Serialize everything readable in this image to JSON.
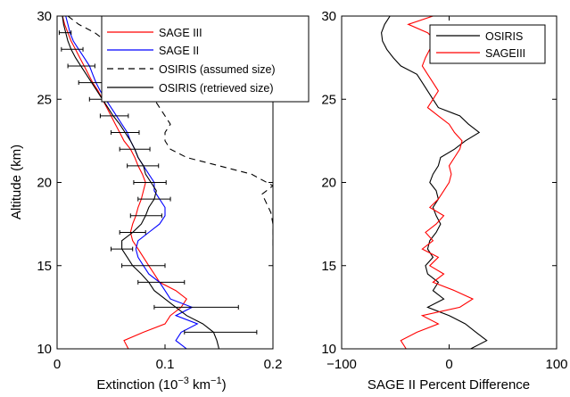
{
  "chart_data": [
    {
      "type": "line",
      "xlabel": "Extinction (10",
      "xlabel_sup1": "−3",
      "xlabel_mid": " km",
      "xlabel_sup2": "−1",
      "xlabel_end": ")",
      "ylabel": "Altitude (km)",
      "xlim": [
        0,
        0.2
      ],
      "ylim": [
        10,
        30
      ],
      "xticks": [
        0,
        0.1,
        0.2
      ],
      "xtick_labels": [
        "0",
        "0.1",
        "0.2"
      ],
      "yticks": [
        10,
        15,
        20,
        25,
        30
      ],
      "ytick_labels": [
        "10",
        "15",
        "20",
        "25",
        "30"
      ],
      "grid": false,
      "legend_position": "top-right",
      "series": [
        {
          "name": "SAGE III",
          "color": "#ff0000",
          "style": "solid",
          "points": [
            [
              0.066,
              10
            ],
            [
              0.062,
              10.5
            ],
            [
              0.08,
              11
            ],
            [
              0.1,
              11.5
            ],
            [
              0.105,
              12
            ],
            [
              0.115,
              12.5
            ],
            [
              0.12,
              13
            ],
            [
              0.11,
              13.5
            ],
            [
              0.095,
              14
            ],
            [
              0.09,
              14.5
            ],
            [
              0.085,
              15
            ],
            [
              0.08,
              15.5
            ],
            [
              0.075,
              16
            ],
            [
              0.07,
              16.5
            ],
            [
              0.068,
              17
            ],
            [
              0.07,
              17.5
            ],
            [
              0.073,
              18
            ],
            [
              0.075,
              18.5
            ],
            [
              0.078,
              19
            ],
            [
              0.08,
              19.5
            ],
            [
              0.082,
              20
            ],
            [
              0.079,
              20.5
            ],
            [
              0.075,
              21
            ],
            [
              0.072,
              21.5
            ],
            [
              0.068,
              22
            ],
            [
              0.062,
              22.5
            ],
            [
              0.058,
              23
            ],
            [
              0.054,
              23.5
            ],
            [
              0.05,
              24
            ],
            [
              0.046,
              24.5
            ],
            [
              0.042,
              25
            ],
            [
              0.038,
              25.5
            ],
            [
              0.033,
              26
            ],
            [
              0.029,
              26.5
            ],
            [
              0.025,
              27
            ],
            [
              0.021,
              27.5
            ],
            [
              0.017,
              28
            ],
            [
              0.013,
              28.5
            ],
            [
              0.01,
              29
            ],
            [
              0.007,
              29.5
            ],
            [
              0.005,
              30
            ]
          ]
        },
        {
          "name": "SAGE II",
          "color": "#0000ff",
          "style": "solid",
          "points": [
            [
              0.12,
              10
            ],
            [
              0.11,
              10.5
            ],
            [
              0.115,
              11
            ],
            [
              0.13,
              11.5
            ],
            [
              0.11,
              12
            ],
            [
              0.125,
              12.5
            ],
            [
              0.105,
              13
            ],
            [
              0.1,
              13.5
            ],
            [
              0.095,
              14
            ],
            [
              0.085,
              14.5
            ],
            [
              0.08,
              15
            ],
            [
              0.075,
              15.5
            ],
            [
              0.073,
              16
            ],
            [
              0.075,
              16.5
            ],
            [
              0.085,
              17
            ],
            [
              0.095,
              17.5
            ],
            [
              0.1,
              18
            ],
            [
              0.1,
              18.5
            ],
            [
              0.095,
              19
            ],
            [
              0.09,
              19.5
            ],
            [
              0.09,
              20
            ],
            [
              0.085,
              20.5
            ],
            [
              0.08,
              21
            ],
            [
              0.075,
              21.5
            ],
            [
              0.072,
              22
            ],
            [
              0.068,
              22.5
            ],
            [
              0.065,
              23
            ],
            [
              0.06,
              23.5
            ],
            [
              0.055,
              24
            ],
            [
              0.05,
              24.5
            ],
            [
              0.045,
              25
            ],
            [
              0.04,
              25.5
            ],
            [
              0.036,
              26
            ],
            [
              0.033,
              26.5
            ],
            [
              0.03,
              27
            ],
            [
              0.025,
              27.5
            ],
            [
              0.02,
              28
            ],
            [
              0.015,
              28.5
            ],
            [
              0.012,
              29
            ],
            [
              0.01,
              29.5
            ],
            [
              0.008,
              30
            ]
          ]
        },
        {
          "name": "OSIRIS (assumed size)",
          "color": "#000000",
          "style": "dashed",
          "points": [
            [
              0.2,
              16.2
            ],
            [
              0.2,
              17.5
            ],
            [
              0.198,
              18.2
            ],
            [
              0.19,
              19.3
            ],
            [
              0.2,
              19.8
            ],
            [
              0.18,
              20.5
            ],
            [
              0.15,
              21
            ],
            [
              0.12,
              21.5
            ],
            [
              0.105,
              22
            ],
            [
              0.1,
              22.5
            ],
            [
              0.1,
              23
            ],
            [
              0.105,
              23.5
            ],
            [
              0.1,
              24
            ],
            [
              0.095,
              24.5
            ],
            [
              0.09,
              25
            ],
            [
              0.085,
              25.5
            ],
            [
              0.08,
              26
            ],
            [
              0.078,
              26.5
            ],
            [
              0.075,
              27
            ],
            [
              0.06,
              27.5
            ],
            [
              0.05,
              28
            ],
            [
              0.045,
              28.5
            ],
            [
              0.035,
              29
            ],
            [
              0.02,
              29.5
            ],
            [
              0.01,
              30
            ]
          ]
        },
        {
          "name": "OSIRIS (retrieved size)",
          "color": "#000000",
          "style": "solid",
          "points": [
            [
              0.15,
              10
            ],
            [
              0.148,
              10.5
            ],
            [
              0.145,
              11
            ],
            [
              0.135,
              11.5
            ],
            [
              0.12,
              12
            ],
            [
              0.11,
              12.5
            ],
            [
              0.1,
              13
            ],
            [
              0.09,
              13.5
            ],
            [
              0.085,
              14
            ],
            [
              0.078,
              14.5
            ],
            [
              0.07,
              15
            ],
            [
              0.065,
              15.5
            ],
            [
              0.06,
              16
            ],
            [
              0.06,
              16.5
            ],
            [
              0.07,
              17
            ],
            [
              0.078,
              17.5
            ],
            [
              0.082,
              18
            ],
            [
              0.085,
              18.5
            ],
            [
              0.09,
              19
            ],
            [
              0.092,
              19.5
            ],
            [
              0.087,
              20
            ],
            [
              0.082,
              20.5
            ],
            [
              0.08,
              21
            ],
            [
              0.075,
              21.5
            ],
            [
              0.072,
              22
            ],
            [
              0.068,
              22.5
            ],
            [
              0.063,
              23
            ],
            [
              0.058,
              23.5
            ],
            [
              0.052,
              24
            ],
            [
              0.047,
              24.5
            ],
            [
              0.042,
              25
            ],
            [
              0.037,
              25.5
            ],
            [
              0.032,
              26
            ],
            [
              0.027,
              26.5
            ],
            [
              0.022,
              27
            ],
            [
              0.017,
              27.5
            ],
            [
              0.013,
              28
            ],
            [
              0.01,
              28.5
            ],
            [
              0.008,
              29
            ],
            [
              0.006,
              29.5
            ],
            [
              0.005,
              30
            ]
          ]
        }
      ],
      "error_bars": [
        {
          "y": 11,
          "x": 0.15,
          "lo": 0.118,
          "hi": 0.185
        },
        {
          "y": 12.5,
          "x": 0.11,
          "lo": 0.09,
          "hi": 0.168
        },
        {
          "y": 14,
          "x": 0.085,
          "lo": 0.075,
          "hi": 0.118
        },
        {
          "y": 15,
          "x": 0.07,
          "lo": 0.06,
          "hi": 0.1
        },
        {
          "y": 16,
          "x": 0.06,
          "lo": 0.05,
          "hi": 0.07
        },
        {
          "y": 17,
          "x": 0.07,
          "lo": 0.058,
          "hi": 0.082
        },
        {
          "y": 18,
          "x": 0.082,
          "lo": 0.068,
          "hi": 0.097
        },
        {
          "y": 19,
          "x": 0.09,
          "lo": 0.075,
          "hi": 0.105
        },
        {
          "y": 20,
          "x": 0.087,
          "lo": 0.071,
          "hi": 0.101
        },
        {
          "y": 21,
          "x": 0.08,
          "lo": 0.065,
          "hi": 0.094
        },
        {
          "y": 22,
          "x": 0.072,
          "lo": 0.058,
          "hi": 0.086
        },
        {
          "y": 23,
          "x": 0.063,
          "lo": 0.05,
          "hi": 0.076
        },
        {
          "y": 24,
          "x": 0.052,
          "lo": 0.04,
          "hi": 0.066
        },
        {
          "y": 25,
          "x": 0.042,
          "lo": 0.03,
          "hi": 0.055
        },
        {
          "y": 26,
          "x": 0.032,
          "lo": 0.02,
          "hi": 0.045
        },
        {
          "y": 27,
          "x": 0.022,
          "lo": 0.01,
          "hi": 0.035
        },
        {
          "y": 28,
          "x": 0.013,
          "lo": 0.004,
          "hi": 0.024
        },
        {
          "y": 29,
          "x": 0.008,
          "lo": 0.002,
          "hi": 0.013
        }
      ]
    },
    {
      "type": "line",
      "xlabel": "SAGE II Percent Difference",
      "ylabel": "",
      "xlim": [
        -100,
        100
      ],
      "ylim": [
        10,
        30
      ],
      "xticks": [
        -100,
        0,
        100
      ],
      "xtick_labels": [
        "−100",
        "0",
        "100"
      ],
      "yticks": [
        10,
        15,
        20,
        25,
        30
      ],
      "ytick_labels": [
        "10",
        "15",
        "20",
        "25",
        "30"
      ],
      "grid": false,
      "legend_position": "top-right",
      "series": [
        {
          "name": "OSIRIS",
          "color": "#000000",
          "style": "solid",
          "points": [
            [
              20,
              10
            ],
            [
              35,
              10.5
            ],
            [
              25,
              11
            ],
            [
              15,
              11.5
            ],
            [
              0,
              12
            ],
            [
              -20,
              12.5
            ],
            [
              -5,
              13
            ],
            [
              -15,
              13.5
            ],
            [
              -10,
              14
            ],
            [
              -20,
              14.5
            ],
            [
              -22,
              15
            ],
            [
              -15,
              15.5
            ],
            [
              -20,
              16
            ],
            [
              -18,
              16.5
            ],
            [
              -12,
              17
            ],
            [
              -8,
              17.5
            ],
            [
              -12,
              18
            ],
            [
              -15,
              18.5
            ],
            [
              -10,
              19
            ],
            [
              -12,
              19.5
            ],
            [
              -18,
              20
            ],
            [
              -15,
              20.5
            ],
            [
              -10,
              21
            ],
            [
              -8,
              21.5
            ],
            [
              5,
              22
            ],
            [
              15,
              22.5
            ],
            [
              28,
              23
            ],
            [
              18,
              23.5
            ],
            [
              10,
              24
            ],
            [
              -10,
              24.5
            ],
            [
              -15,
              25
            ],
            [
              -20,
              25.5
            ],
            [
              -25,
              26
            ],
            [
              -30,
              26.5
            ],
            [
              -45,
              27
            ],
            [
              -52,
              27.5
            ],
            [
              -58,
              28
            ],
            [
              -62,
              28.5
            ],
            [
              -63,
              29
            ],
            [
              -60,
              29.5
            ],
            [
              -55,
              30
            ]
          ]
        },
        {
          "name": "SAGEIII",
          "color": "#ff0000",
          "style": "solid",
          "points": [
            [
              -40,
              10
            ],
            [
              -45,
              10.5
            ],
            [
              -30,
              11
            ],
            [
              -10,
              11.5
            ],
            [
              -25,
              12
            ],
            [
              10,
              12.5
            ],
            [
              22,
              13
            ],
            [
              5,
              13.5
            ],
            [
              -15,
              14
            ],
            [
              -5,
              14.5
            ],
            [
              -18,
              15
            ],
            [
              -10,
              15.5
            ],
            [
              -25,
              16
            ],
            [
              -15,
              16.5
            ],
            [
              -22,
              17
            ],
            [
              -12,
              17.5
            ],
            [
              -5,
              18
            ],
            [
              -18,
              18.5
            ],
            [
              -10,
              19
            ],
            [
              -5,
              19.5
            ],
            [
              0,
              20
            ],
            [
              2,
              20.5
            ],
            [
              0,
              21
            ],
            [
              5,
              21.5
            ],
            [
              10,
              22
            ],
            [
              12,
              22.5
            ],
            [
              5,
              23
            ],
            [
              0,
              23.5
            ],
            [
              -10,
              24
            ],
            [
              -20,
              24.5
            ],
            [
              -15,
              25
            ],
            [
              -10,
              25.5
            ],
            [
              -15,
              26
            ],
            [
              -20,
              26.5
            ],
            [
              -25,
              27
            ],
            [
              -22,
              27.5
            ],
            [
              -18,
              28
            ],
            [
              -12,
              28.5
            ],
            [
              -20,
              29
            ],
            [
              -38,
              29.5
            ],
            [
              -15,
              30
            ]
          ]
        }
      ]
    }
  ]
}
